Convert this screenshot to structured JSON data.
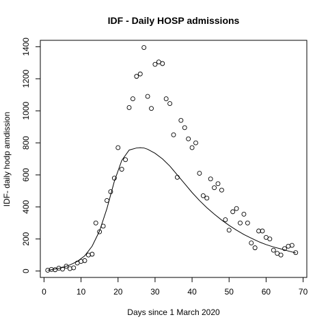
{
  "chart_data": {
    "type": "scatter",
    "title": "IDF - Daily HOSP admissions",
    "xlabel": "Days since 1 March 2020",
    "ylabel": "IDF- daily hodp amdission",
    "xlim": [
      -1,
      71
    ],
    "ylim": [
      -40,
      1440
    ],
    "x_ticks": [
      0,
      10,
      20,
      30,
      40,
      50,
      60,
      70
    ],
    "y_ticks": [
      0,
      200,
      400,
      600,
      800,
      1000,
      1200,
      1400
    ],
    "grid": false,
    "legend": "none",
    "series": [
      {
        "type": "scatter",
        "x": [
          1,
          2,
          3,
          4,
          5,
          6,
          7,
          8,
          9,
          10,
          11,
          12,
          13,
          14,
          15,
          16,
          17,
          18,
          19,
          20,
          21,
          22,
          23,
          24,
          25,
          26,
          27,
          28,
          29,
          30,
          31,
          32,
          33,
          34,
          35,
          36,
          37,
          38,
          39,
          40,
          41,
          42,
          43,
          44,
          45,
          46,
          47,
          48,
          49,
          50,
          51,
          52,
          53,
          54,
          55,
          56,
          57,
          58,
          59,
          60,
          61,
          62,
          63,
          64,
          65,
          66,
          67,
          68
        ],
        "y": [
          5,
          10,
          8,
          18,
          12,
          30,
          15,
          20,
          50,
          60,
          65,
          100,
          105,
          300,
          245,
          280,
          440,
          495,
          580,
          770,
          635,
          695,
          1020,
          1075,
          1215,
          1230,
          1395,
          1090,
          1015,
          1290,
          1305,
          1295,
          1075,
          1045,
          850,
          585,
          940,
          895,
          825,
          770,
          800,
          610,
          470,
          455,
          575,
          520,
          545,
          505,
          320,
          255,
          370,
          390,
          300,
          355,
          300,
          175,
          145,
          250,
          250,
          210,
          200,
          130,
          110,
          100,
          140,
          155,
          160,
          115
        ]
      },
      {
        "type": "line",
        "x": [
          1,
          3,
          5,
          7,
          9,
          11,
          13,
          15,
          17,
          19,
          21,
          23,
          25,
          26,
          27,
          28,
          30,
          32,
          34,
          36,
          38,
          40,
          42,
          44,
          46,
          48,
          50,
          52,
          54,
          56,
          58,
          60,
          62,
          64,
          66,
          68
        ],
        "y": [
          5,
          12,
          22,
          38,
          60,
          95,
          155,
          250,
          390,
          560,
          690,
          755,
          768,
          770,
          768,
          760,
          735,
          700,
          655,
          600,
          545,
          490,
          440,
          395,
          355,
          318,
          285,
          255,
          228,
          205,
          183,
          165,
          150,
          138,
          125,
          113
        ]
      }
    ]
  }
}
